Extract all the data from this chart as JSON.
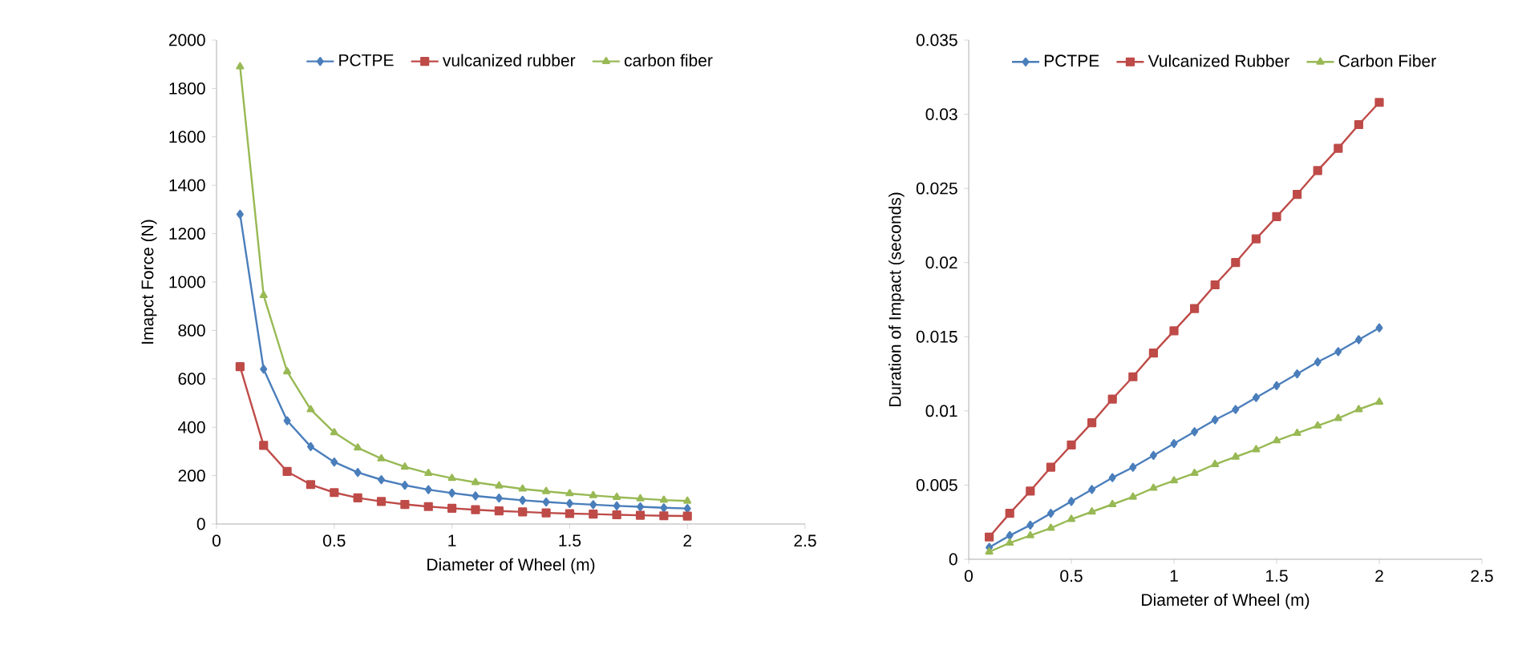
{
  "chart_data": [
    {
      "type": "line",
      "xlabel": "Diameter of Wheel (m)",
      "ylabel": "Imapct Force (N)",
      "x": [
        0.1,
        0.2,
        0.3,
        0.4,
        0.5,
        0.6,
        0.7,
        0.8,
        0.9,
        1.0,
        1.1,
        1.2,
        1.3,
        1.4,
        1.5,
        1.6,
        1.7,
        1.8,
        1.9,
        2.0
      ],
      "xlim": [
        0,
        2.5
      ],
      "xticks": [
        0,
        0.5,
        1,
        1.5,
        2,
        2.5
      ],
      "ylim": [
        0,
        2000
      ],
      "yticks": [
        0,
        200,
        400,
        600,
        800,
        1000,
        1200,
        1400,
        1600,
        1800,
        2000
      ],
      "grid": false,
      "legend": "top",
      "series": [
        {
          "name": "PCTPE",
          "color": "#4a7ebb",
          "marker": "diamond",
          "values": [
            1280,
            640,
            427,
            320,
            256,
            213,
            183,
            160,
            142,
            128,
            116,
            107,
            98,
            91,
            85,
            80,
            75,
            71,
            67,
            64
          ]
        },
        {
          "name": "vulcanized rubber",
          "color": "#be4b48",
          "marker": "square",
          "values": [
            650,
            325,
            217,
            163,
            130,
            108,
            93,
            81,
            72,
            65,
            59,
            54,
            50,
            46,
            43,
            41,
            38,
            36,
            34,
            33
          ]
        },
        {
          "name": "carbon fiber",
          "color": "#98b954",
          "marker": "triangle",
          "values": [
            1890,
            945,
            630,
            473,
            378,
            315,
            270,
            236,
            210,
            189,
            172,
            158,
            145,
            135,
            126,
            118,
            111,
            105,
            99,
            95
          ]
        }
      ]
    },
    {
      "type": "line",
      "xlabel": "Diameter of Wheel (m)",
      "ylabel": "Duration of Impact (seconds)",
      "x": [
        0.1,
        0.2,
        0.3,
        0.4,
        0.5,
        0.6,
        0.7,
        0.8,
        0.9,
        1.0,
        1.1,
        1.2,
        1.3,
        1.4,
        1.5,
        1.6,
        1.7,
        1.8,
        1.9,
        2.0
      ],
      "xlim": [
        0,
        2.5
      ],
      "xticks": [
        0,
        0.5,
        1,
        1.5,
        2,
        2.5
      ],
      "ylim": [
        0,
        0.035
      ],
      "yticks": [
        0,
        0.005,
        0.01,
        0.015,
        0.02,
        0.025,
        0.03,
        0.035
      ],
      "grid": false,
      "legend": "top",
      "series": [
        {
          "name": "PCTPE",
          "color": "#4a7ebb",
          "marker": "diamond",
          "values": [
            0.0008,
            0.0016,
            0.0023,
            0.0031,
            0.0039,
            0.0047,
            0.0055,
            0.0062,
            0.007,
            0.0078,
            0.0086,
            0.0094,
            0.0101,
            0.0109,
            0.0117,
            0.0125,
            0.0133,
            0.014,
            0.0148,
            0.0156
          ]
        },
        {
          "name": "Vulcanized Rubber",
          "color": "#be4b48",
          "marker": "square",
          "values": [
            0.0015,
            0.0031,
            0.0046,
            0.0062,
            0.0077,
            0.0092,
            0.0108,
            0.0123,
            0.0139,
            0.0154,
            0.0169,
            0.0185,
            0.02,
            0.0216,
            0.0231,
            0.0246,
            0.0262,
            0.0277,
            0.0293,
            0.0308
          ]
        },
        {
          "name": "Carbon Fiber",
          "color": "#98b954",
          "marker": "triangle",
          "values": [
            0.0005,
            0.0011,
            0.0016,
            0.0021,
            0.0027,
            0.0032,
            0.0037,
            0.0042,
            0.0048,
            0.0053,
            0.0058,
            0.0064,
            0.0069,
            0.0074,
            0.008,
            0.0085,
            0.009,
            0.0095,
            0.0101,
            0.0106
          ]
        }
      ]
    }
  ]
}
